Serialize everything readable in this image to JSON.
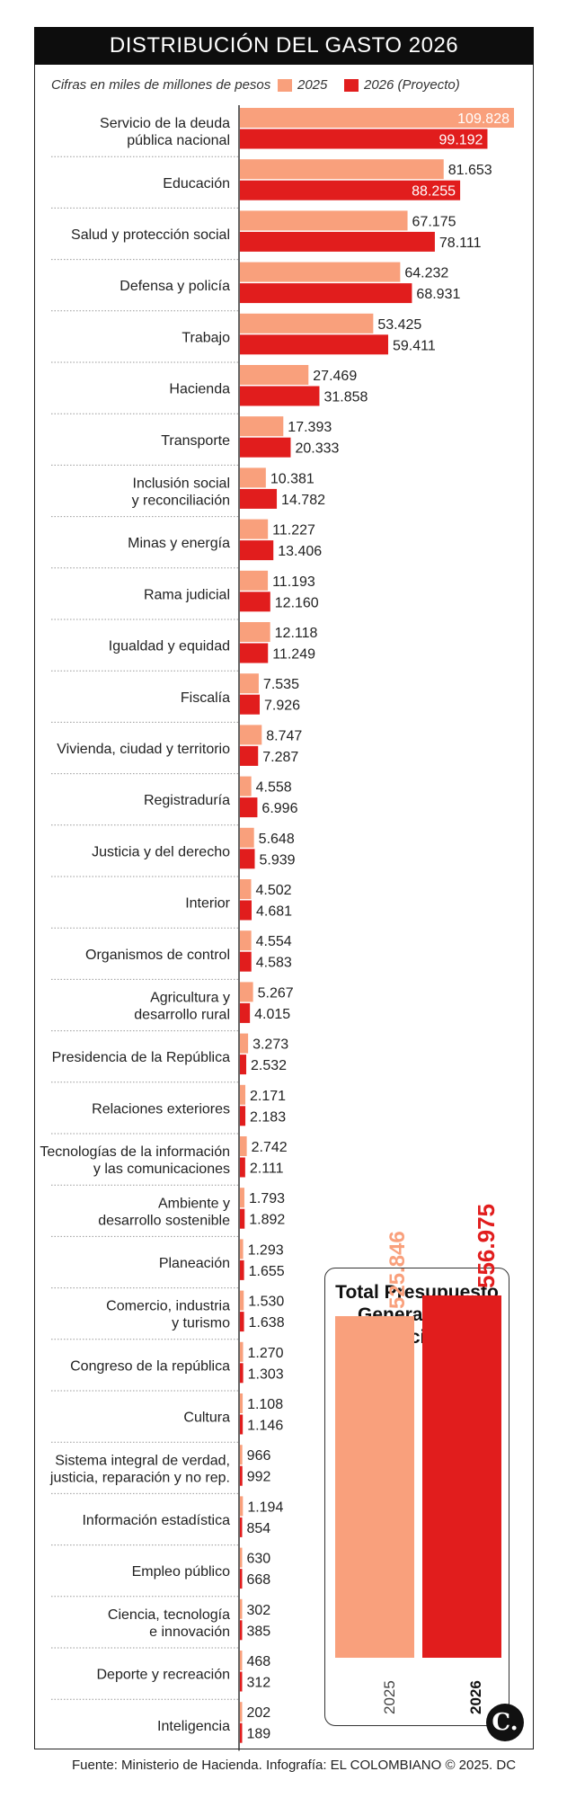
{
  "chart_data": {
    "type": "bar",
    "orientation": "horizontal",
    "title": "DISTRIBUCIÓN DEL GASTO 2026",
    "subtitle": "Cifras en miles de millones de pesos",
    "colors": {
      "2025": "#f9a07c",
      "2026 (Proyecto)": "#e11d1d"
    },
    "categories": [
      "Servicio de la deuda pública nacional",
      "Educación",
      "Salud y protección social",
      "Defensa y policía",
      "Trabajo",
      "Hacienda",
      "Transporte",
      "Inclusión social y reconciliación",
      "Minas y energía",
      "Rama judicial",
      "Igualdad y equidad",
      "Fiscalía",
      "Vivienda, ciudad y territorio",
      "Registraduría",
      "Justicia y del derecho",
      "Interior",
      "Organismos de control",
      "Agricultura y desarrollo rural",
      "Presidencia de la República",
      "Relaciones exteriores",
      "Tecnologías de la información y las comunicaciones",
      "Ambiente y desarrollo sostenible",
      "Planeación",
      "Comercio, industria y turismo",
      "Congreso de la república",
      "Cultura",
      "Sistema integral de verdad, justicia, reparación y no rep.",
      "Información estadística",
      "Empleo público",
      "Ciencia, tecnología e innovación",
      "Deporte y recreación",
      "Inteligencia"
    ],
    "label_lines": [
      [
        "Servicio de la deuda",
        "pública nacional"
      ],
      [
        "Educación"
      ],
      [
        "Salud y protección social"
      ],
      [
        "Defensa y policía"
      ],
      [
        "Trabajo"
      ],
      [
        "Hacienda"
      ],
      [
        "Transporte"
      ],
      [
        "Inclusión social",
        "y reconciliación"
      ],
      [
        "Minas y energía"
      ],
      [
        "Rama judicial"
      ],
      [
        "Igualdad y equidad"
      ],
      [
        "Fiscalía"
      ],
      [
        "Vivienda, ciudad y territorio"
      ],
      [
        "Registraduría"
      ],
      [
        "Justicia y del derecho"
      ],
      [
        "Interior"
      ],
      [
        "Organismos de control"
      ],
      [
        "Agricultura y",
        "desarrollo rural"
      ],
      [
        "Presidencia de la República"
      ],
      [
        "Relaciones exteriores"
      ],
      [
        "Tecnologías de la información",
        "y las comunicaciones"
      ],
      [
        "Ambiente y",
        "desarrollo sostenible"
      ],
      [
        "Planeación"
      ],
      [
        "Comercio, industria",
        "y turismo"
      ],
      [
        "Congreso de la república"
      ],
      [
        "Cultura"
      ],
      [
        "Sistema integral de verdad,",
        "justicia, reparación y no rep."
      ],
      [
        "Información estadística"
      ],
      [
        "Empleo público"
      ],
      [
        "Ciencia, tecnología",
        "e innovación"
      ],
      [
        "Deporte y recreación"
      ],
      [
        "Inteligencia"
      ]
    ],
    "series": [
      {
        "name": "2025",
        "values": [
          109828,
          81653,
          67175,
          64232,
          53425,
          27469,
          17393,
          10381,
          11227,
          11193,
          12118,
          7535,
          8747,
          4558,
          5648,
          4502,
          4554,
          5267,
          3273,
          2171,
          2742,
          1793,
          1293,
          1530,
          1270,
          1108,
          966,
          1194,
          630,
          302,
          468,
          202
        ]
      },
      {
        "name": "2026 (Proyecto)",
        "values": [
          99192,
          88255,
          78111,
          68931,
          59411,
          31858,
          20333,
          14782,
          13406,
          12160,
          11249,
          7926,
          7287,
          6996,
          5939,
          4681,
          4583,
          4015,
          2532,
          2183,
          2111,
          1892,
          1655,
          1638,
          1303,
          1146,
          992,
          854,
          668,
          385,
          312,
          189
        ]
      }
    ],
    "value_labels": [
      [
        "109.828",
        "99.192"
      ],
      [
        "81.653",
        "88.255"
      ],
      [
        "67.175",
        "78.111"
      ],
      [
        "64.232",
        "68.931"
      ],
      [
        "53.425",
        "59.411"
      ],
      [
        "27.469",
        "31.858"
      ],
      [
        "17.393",
        "20.333"
      ],
      [
        "10.381",
        "14.782"
      ],
      [
        "11.227",
        "13.406"
      ],
      [
        "11.193",
        "12.160"
      ],
      [
        "12.118",
        "11.249"
      ],
      [
        "7.535",
        "7.926"
      ],
      [
        "8.747",
        "7.287"
      ],
      [
        "4.558",
        "6.996"
      ],
      [
        "5.648",
        "5.939"
      ],
      [
        "4.502",
        "4.681"
      ],
      [
        "4.554",
        "4.583"
      ],
      [
        "5.267",
        "4.015"
      ],
      [
        "3.273",
        "2.532"
      ],
      [
        "2.171",
        "2.183"
      ],
      [
        "2.742",
        "2.111"
      ],
      [
        "1.793",
        "1.892"
      ],
      [
        "1.293",
        "1.655"
      ],
      [
        "1.530",
        "1.638"
      ],
      [
        "1.270",
        "1.303"
      ],
      [
        "1.108",
        "1.146"
      ],
      [
        "966",
        "992"
      ],
      [
        "1.194",
        "854"
      ],
      [
        "630",
        "668"
      ],
      [
        "302",
        "385"
      ],
      [
        "468",
        "312"
      ],
      [
        "202",
        "189"
      ]
    ],
    "legend_position": "top-right",
    "grid": false,
    "total": {
      "title_lines": [
        "Total Presupuesto",
        "General de la Nación"
      ],
      "categories": [
        "2025",
        "2026"
      ],
      "values": [
        525846,
        556975
      ],
      "value_labels": [
        "525.846",
        "556.975"
      ]
    }
  },
  "legend": {
    "label_2025": "2025",
    "label_2026": "2026 (Proyecto)"
  },
  "logo": {
    "text": "C."
  },
  "footer": "Fuente: Ministerio de Hacienda. Infografía: EL COLOMBIANO © 2025. DC"
}
